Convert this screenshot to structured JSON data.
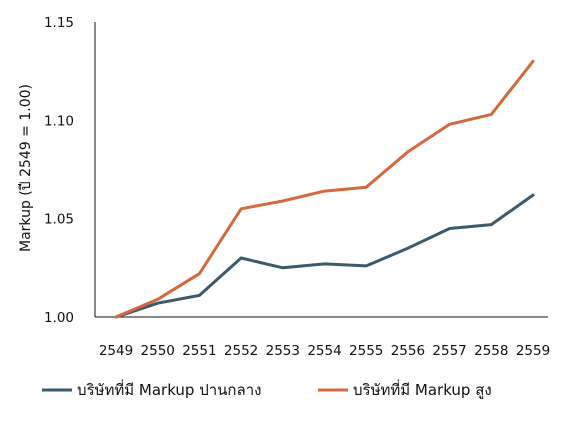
{
  "chart_data": {
    "type": "line",
    "title": "",
    "xlabel": "",
    "ylabel": "Markup (ปี 2549 = 1.00)",
    "categories": [
      "2549",
      "2550",
      "2551",
      "2552",
      "2553",
      "2554",
      "2555",
      "2556",
      "2557",
      "2558",
      "2559"
    ],
    "ylim": [
      1.0,
      1.15
    ],
    "yticks": [
      1.0,
      1.05,
      1.1,
      1.15
    ],
    "ytick_labels": [
      "1.00",
      "1.05",
      "1.10",
      "1.15"
    ],
    "grid": false,
    "legend_position": "bottom",
    "series": [
      {
        "name": "บริษัทที่มี Markup ปานกลาง",
        "color": "#3d5a6c",
        "values": [
          1.0,
          1.007,
          1.011,
          1.03,
          1.025,
          1.027,
          1.026,
          1.035,
          1.045,
          1.047,
          1.062
        ]
      },
      {
        "name": "บริษัทที่มี Markup สูง",
        "color": "#d2693f",
        "values": [
          1.0,
          1.009,
          1.022,
          1.055,
          1.059,
          1.064,
          1.066,
          1.084,
          1.098,
          1.103,
          1.13
        ]
      }
    ]
  }
}
